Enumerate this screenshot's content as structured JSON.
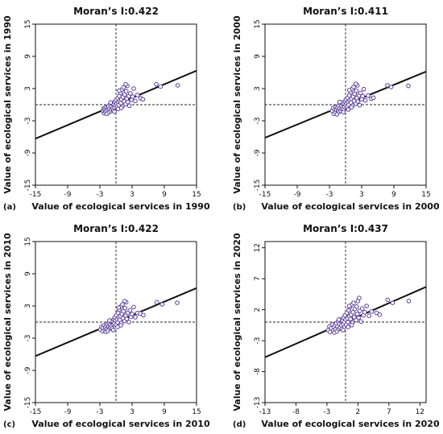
{
  "chart_data": [
    {
      "type": "scatter",
      "panel_label": "(a)",
      "title": "Moran’s I:0.422",
      "xlabel": "Value of ecological services in 1990",
      "ylabel": "Value of ecological services in 1990",
      "xlim": [
        -15,
        15
      ],
      "ylim": [
        -15,
        15
      ],
      "xticks": [
        -15,
        -9,
        -3,
        3,
        9,
        15
      ],
      "yticks": [
        -15,
        -9,
        -3,
        3,
        9,
        15
      ],
      "slope": 0.422,
      "reference_lines": {
        "x": 0,
        "y": 0
      },
      "point_color": "#5b3f99",
      "line_color": "#111111",
      "points": [
        [
          -2.4,
          -1.2
        ],
        [
          -2.3,
          -0.7
        ],
        [
          -2.2,
          -1.6
        ],
        [
          -2.1,
          -0.9
        ],
        [
          -2.0,
          -1.3
        ],
        [
          -1.9,
          -0.5
        ],
        [
          -1.8,
          -1.1
        ],
        [
          -1.7,
          -1.7
        ],
        [
          -1.6,
          -0.6
        ],
        [
          -1.5,
          -1.0
        ],
        [
          -1.4,
          -0.3
        ],
        [
          -1.3,
          -1.4
        ],
        [
          -1.2,
          -0.8
        ],
        [
          -1.1,
          0.1
        ],
        [
          -1.0,
          -1.2
        ],
        [
          -0.9,
          -0.4
        ],
        [
          -0.8,
          -0.9
        ],
        [
          -0.7,
          0.3
        ],
        [
          -0.6,
          -0.6
        ],
        [
          -0.5,
          -1.1
        ],
        [
          -0.4,
          0.0
        ],
        [
          -0.3,
          -0.5
        ],
        [
          -0.2,
          0.5
        ],
        [
          -0.1,
          -0.2
        ],
        [
          0.0,
          0.9
        ],
        [
          0.1,
          0.2
        ],
        [
          0.2,
          -0.4
        ],
        [
          0.3,
          1.2
        ],
        [
          0.4,
          0.4
        ],
        [
          0.5,
          -0.1
        ],
        [
          0.6,
          1.6
        ],
        [
          0.7,
          0.7
        ],
        [
          0.8,
          2.2
        ],
        [
          0.9,
          0.3
        ],
        [
          1.0,
          1.0
        ],
        [
          1.1,
          2.8
        ],
        [
          1.2,
          -0.3
        ],
        [
          1.3,
          1.4
        ],
        [
          1.4,
          3.2
        ],
        [
          1.5,
          0.6
        ],
        [
          1.6,
          1.9
        ],
        [
          1.8,
          0.1
        ],
        [
          1.9,
          2.5
        ],
        [
          2.0,
          1.1
        ],
        [
          2.1,
          3.5
        ],
        [
          2.2,
          0.5
        ],
        [
          2.4,
          1.6
        ],
        [
          2.5,
          -0.2
        ],
        [
          2.7,
          2.1
        ],
        [
          2.9,
          0.9
        ],
        [
          3.1,
          1.5
        ],
        [
          3.3,
          3.0
        ],
        [
          3.6,
          0.7
        ],
        [
          4.0,
          1.8
        ],
        [
          4.6,
          1.2
        ],
        [
          5.0,
          1.0
        ],
        [
          7.5,
          3.8
        ],
        [
          8.3,
          3.4
        ],
        [
          11.5,
          3.6
        ],
        [
          -0.3,
          -1.3
        ],
        [
          0.4,
          -0.8
        ],
        [
          1.0,
          -0.6
        ],
        [
          -1.0,
          0.4
        ],
        [
          0.6,
          2.6
        ],
        [
          1.8,
          3.8
        ]
      ]
    },
    {
      "type": "scatter",
      "panel_label": "(b)",
      "title": "Moran’s I:0.411",
      "xlabel": "Value of ecological services in 2000",
      "ylabel": "Value of ecological services in 2000",
      "xlim": [
        -15,
        15
      ],
      "ylim": [
        -15,
        15
      ],
      "xticks": [
        -15,
        -9,
        -3,
        3,
        9,
        15
      ],
      "yticks": [
        -15,
        -9,
        -3,
        3,
        9,
        15
      ],
      "slope": 0.411,
      "reference_lines": {
        "x": 0,
        "y": 0
      },
      "point_color": "#5b3f99",
      "line_color": "#111111",
      "points": [
        [
          -2.5,
          -1.1
        ],
        [
          -2.3,
          -0.6
        ],
        [
          -2.2,
          -1.7
        ],
        [
          -2.0,
          -0.9
        ],
        [
          -1.9,
          -1.4
        ],
        [
          -1.8,
          -0.4
        ],
        [
          -1.7,
          -1.0
        ],
        [
          -1.6,
          -1.8
        ],
        [
          -1.5,
          -0.5
        ],
        [
          -1.4,
          -1.1
        ],
        [
          -1.3,
          -0.2
        ],
        [
          -1.2,
          -1.3
        ],
        [
          -1.1,
          -0.7
        ],
        [
          -1.0,
          0.2
        ],
        [
          -0.9,
          -1.1
        ],
        [
          -0.8,
          -0.3
        ],
        [
          -0.7,
          -0.8
        ],
        [
          -0.6,
          0.4
        ],
        [
          -0.5,
          -0.5
        ],
        [
          -0.4,
          -1.0
        ],
        [
          -0.3,
          0.1
        ],
        [
          -0.2,
          -0.4
        ],
        [
          -0.1,
          0.6
        ],
        [
          0.0,
          -0.1
        ],
        [
          0.1,
          1.0
        ],
        [
          0.2,
          0.3
        ],
        [
          0.3,
          -0.3
        ],
        [
          0.4,
          1.3
        ],
        [
          0.5,
          0.5
        ],
        [
          0.6,
          0.0
        ],
        [
          0.7,
          1.7
        ],
        [
          0.8,
          0.8
        ],
        [
          0.9,
          2.3
        ],
        [
          1.0,
          0.4
        ],
        [
          1.1,
          1.1
        ],
        [
          1.2,
          2.9
        ],
        [
          1.3,
          -0.2
        ],
        [
          1.4,
          1.5
        ],
        [
          1.5,
          3.3
        ],
        [
          1.6,
          0.7
        ],
        [
          1.7,
          2.0
        ],
        [
          1.9,
          0.2
        ],
        [
          2.0,
          2.6
        ],
        [
          2.1,
          1.2
        ],
        [
          2.2,
          3.6
        ],
        [
          2.3,
          0.6
        ],
        [
          2.5,
          1.7
        ],
        [
          2.6,
          -0.1
        ],
        [
          2.8,
          2.2
        ],
        [
          3.0,
          1.0
        ],
        [
          3.2,
          1.6
        ],
        [
          3.4,
          2.9
        ],
        [
          3.7,
          0.8
        ],
        [
          4.2,
          1.7
        ],
        [
          4.8,
          1.1
        ],
        [
          5.2,
          1.3
        ],
        [
          7.8,
          3.6
        ],
        [
          8.5,
          3.3
        ],
        [
          11.7,
          3.5
        ],
        [
          -0.4,
          -1.4
        ],
        [
          0.5,
          -0.9
        ],
        [
          1.1,
          -0.5
        ],
        [
          -1.1,
          0.5
        ],
        [
          0.7,
          2.7
        ],
        [
          1.9,
          3.9
        ]
      ]
    },
    {
      "type": "scatter",
      "panel_label": "(c)",
      "title": "Moran’s I:0.422",
      "xlabel": "Value of ecological services in 2010",
      "ylabel": "Value of ecological services in 2010",
      "xlim": [
        -15,
        15
      ],
      "ylim": [
        -15,
        15
      ],
      "xticks": [
        -15,
        -9,
        -3,
        3,
        9,
        15
      ],
      "yticks": [
        -15,
        -9,
        -3,
        3,
        9,
        15
      ],
      "slope": 0.422,
      "reference_lines": {
        "x": 0,
        "y": 0
      },
      "point_color": "#5b3f99",
      "line_color": "#111111",
      "points": [
        [
          -2.9,
          -1.4
        ],
        [
          -2.7,
          -0.9
        ],
        [
          -2.5,
          -1.7
        ],
        [
          -2.4,
          -1.1
        ],
        [
          -2.2,
          -0.6
        ],
        [
          -2.1,
          -1.5
        ],
        [
          -2.0,
          -1.0
        ],
        [
          -1.9,
          -1.8
        ],
        [
          -1.8,
          -0.7
        ],
        [
          -1.7,
          -1.3
        ],
        [
          -1.6,
          -0.4
        ],
        [
          -1.5,
          -1.6
        ],
        [
          -1.4,
          -0.9
        ],
        [
          -1.3,
          -0.1
        ],
        [
          -1.2,
          -1.2
        ],
        [
          -1.1,
          -0.5
        ],
        [
          -1.0,
          -1.0
        ],
        [
          -0.9,
          0.2
        ],
        [
          -0.8,
          -0.6
        ],
        [
          -0.7,
          -1.2
        ],
        [
          -0.6,
          0.1
        ],
        [
          -0.5,
          -0.4
        ],
        [
          -0.4,
          0.5
        ],
        [
          -0.3,
          -0.2
        ],
        [
          -0.2,
          0.9
        ],
        [
          -0.1,
          0.3
        ],
        [
          0.0,
          -0.5
        ],
        [
          0.1,
          1.3
        ],
        [
          0.2,
          0.5
        ],
        [
          0.3,
          -0.1
        ],
        [
          0.4,
          1.7
        ],
        [
          0.5,
          0.8
        ],
        [
          0.6,
          2.3
        ],
        [
          0.7,
          0.4
        ],
        [
          0.8,
          1.1
        ],
        [
          0.9,
          2.9
        ],
        [
          1.0,
          -0.2
        ],
        [
          1.1,
          1.5
        ],
        [
          1.2,
          3.3
        ],
        [
          1.3,
          0.7
        ],
        [
          1.4,
          2.0
        ],
        [
          1.6,
          0.2
        ],
        [
          1.7,
          2.6
        ],
        [
          1.8,
          1.2
        ],
        [
          1.9,
          3.7
        ],
        [
          2.0,
          0.6
        ],
        [
          2.2,
          1.7
        ],
        [
          2.4,
          0.0
        ],
        [
          2.6,
          2.2
        ],
        [
          2.8,
          1.0
        ],
        [
          3.0,
          1.5
        ],
        [
          3.3,
          2.8
        ],
        [
          3.6,
          0.9
        ],
        [
          4.0,
          1.7
        ],
        [
          4.5,
          1.6
        ],
        [
          5.1,
          1.3
        ],
        [
          7.6,
          3.7
        ],
        [
          8.6,
          3.3
        ],
        [
          11.4,
          3.6
        ],
        [
          -0.5,
          -1.5
        ],
        [
          0.3,
          -0.9
        ],
        [
          0.9,
          -0.6
        ],
        [
          -1.2,
          0.3
        ],
        [
          0.5,
          2.7
        ],
        [
          1.6,
          3.9
        ]
      ]
    },
    {
      "type": "scatter",
      "panel_label": "(d)",
      "title": "Moran’s I:0.437",
      "xlabel": "Value of ecological services in 2020",
      "ylabel": "Value of ecological services in 2020",
      "xlim": [
        -13,
        13
      ],
      "ylim": [
        -13,
        13
      ],
      "xticks": [
        -13,
        -8,
        -3,
        2,
        7,
        12
      ],
      "yticks": [
        -13,
        -8,
        -3,
        2,
        7,
        12
      ],
      "slope": 0.437,
      "reference_lines": {
        "x": 0,
        "y": 0
      },
      "point_color": "#5b3f99",
      "line_color": "#111111",
      "points": [
        [
          -2.8,
          -1.3
        ],
        [
          -2.6,
          -0.7
        ],
        [
          -2.5,
          -1.6
        ],
        [
          -2.3,
          -1.0
        ],
        [
          -2.1,
          -0.4
        ],
        [
          -2.0,
          -1.4
        ],
        [
          -1.9,
          -0.8
        ],
        [
          -1.8,
          -1.7
        ],
        [
          -1.7,
          -0.5
        ],
        [
          -1.6,
          -1.2
        ],
        [
          -1.5,
          -0.2
        ],
        [
          -1.4,
          -1.5
        ],
        [
          -1.3,
          -0.7
        ],
        [
          -1.2,
          0.1
        ],
        [
          -1.1,
          -1.1
        ],
        [
          -1.0,
          -0.3
        ],
        [
          -0.9,
          -0.9
        ],
        [
          -0.8,
          0.4
        ],
        [
          -0.7,
          -0.5
        ],
        [
          -0.6,
          -1.1
        ],
        [
          -0.5,
          0.2
        ],
        [
          -0.4,
          -0.3
        ],
        [
          -0.3,
          0.7
        ],
        [
          -0.2,
          0.0
        ],
        [
          -0.1,
          1.1
        ],
        [
          0.0,
          0.4
        ],
        [
          0.1,
          -0.4
        ],
        [
          0.2,
          1.5
        ],
        [
          0.3,
          0.6
        ],
        [
          0.4,
          0.0
        ],
        [
          0.5,
          1.9
        ],
        [
          0.6,
          0.9
        ],
        [
          0.7,
          2.4
        ],
        [
          0.8,
          0.5
        ],
        [
          0.9,
          1.2
        ],
        [
          1.0,
          2.8
        ],
        [
          1.1,
          -0.1
        ],
        [
          1.2,
          1.6
        ],
        [
          1.3,
          3.1
        ],
        [
          1.4,
          0.8
        ],
        [
          1.5,
          2.1
        ],
        [
          1.7,
          0.3
        ],
        [
          1.8,
          2.5
        ],
        [
          1.9,
          1.3
        ],
        [
          2.0,
          3.4
        ],
        [
          2.1,
          0.7
        ],
        [
          2.3,
          1.8
        ],
        [
          2.5,
          0.1
        ],
        [
          2.7,
          2.2
        ],
        [
          2.9,
          1.1
        ],
        [
          3.1,
          1.6
        ],
        [
          3.4,
          2.6
        ],
        [
          3.8,
          1.0
        ],
        [
          4.2,
          1.7
        ],
        [
          5.0,
          1.5
        ],
        [
          5.5,
          1.2
        ],
        [
          6.8,
          3.6
        ],
        [
          7.6,
          3.1
        ],
        [
          10.2,
          3.4
        ],
        [
          -0.4,
          -1.3
        ],
        [
          0.4,
          -0.8
        ],
        [
          1.0,
          -0.5
        ],
        [
          -1.1,
          0.4
        ],
        [
          0.6,
          2.6
        ],
        [
          2.2,
          3.9
        ]
      ]
    }
  ]
}
